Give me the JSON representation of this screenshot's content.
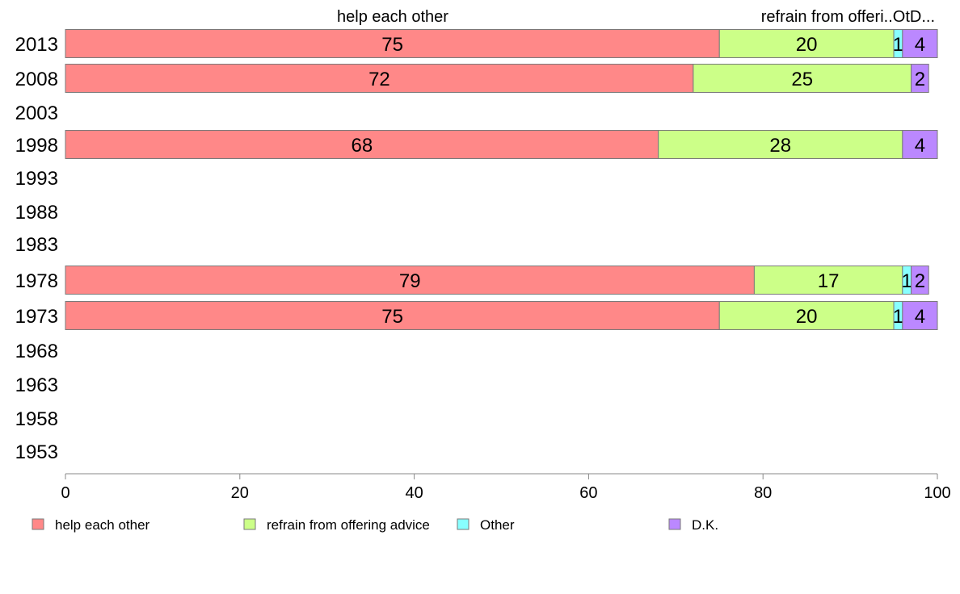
{
  "chart_data": {
    "type": "bar",
    "orientation": "horizontal",
    "stacked": true,
    "top_labels": [
      "help each other",
      "refrain from offeri..OtD..."
    ],
    "categories": [
      "2013",
      "2008",
      "2003",
      "1998",
      "1993",
      "1988",
      "1983",
      "1978",
      "1973",
      "1968",
      "1963",
      "1958",
      "1953"
    ],
    "series": [
      {
        "name": "help each other",
        "color": "#ff8888",
        "values": [
          75,
          72,
          null,
          68,
          null,
          null,
          null,
          79,
          75,
          null,
          null,
          null,
          null
        ]
      },
      {
        "name": "refrain from offering advice",
        "color": "#ccff88",
        "values": [
          20,
          25,
          null,
          28,
          null,
          null,
          null,
          17,
          20,
          null,
          null,
          null,
          null
        ]
      },
      {
        "name": "Other",
        "color": "#88ffff",
        "values": [
          1,
          0,
          null,
          0,
          null,
          null,
          null,
          1,
          1,
          null,
          null,
          null,
          null
        ]
      },
      {
        "name": "D.K.",
        "color": "#bb88ff",
        "values": [
          4,
          2,
          null,
          4,
          null,
          null,
          null,
          2,
          4,
          null,
          null,
          null,
          null
        ]
      }
    ],
    "xlim": [
      0,
      100
    ],
    "xticks": [
      0,
      20,
      40,
      60,
      80,
      100
    ],
    "legend_position": "bottom",
    "grid": false
  }
}
